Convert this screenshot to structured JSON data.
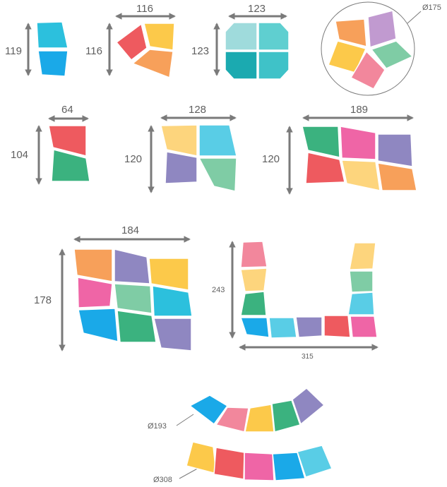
{
  "colors": {
    "cyan": "#2cc0dd",
    "blue": "#1aa9e8",
    "red": "#ee5a5f",
    "yellow": "#fcc94a",
    "orange": "#f7a05a",
    "teal_light": "#9fdbdc",
    "teal": "#5fcfd0",
    "teal_dark": "#1baab0",
    "teal_mid": "#3fc2c8",
    "pink": "#f2879c",
    "lilac": "#c19ad0",
    "mint": "#7fcca5",
    "green": "#3bb27f",
    "yellow_light": "#fdd57d",
    "sky": "#59cde6",
    "purple": "#8f87c1",
    "magenta": "#ef65a6",
    "arrow": "#7a7a7a",
    "text": "#5f5f5f"
  },
  "labels": {
    "d1": "119",
    "d2w": "116",
    "d2h": "116",
    "d3w": "123",
    "d3h": "123",
    "d4": "Ø175",
    "d5w": "64",
    "d5h": "104",
    "d6w": "128",
    "d6h": "120",
    "d7w": "189",
    "d7h": "120",
    "d8w": "184",
    "d8h": "178",
    "d9h": "243",
    "d9w": "315",
    "d10": "Ø193",
    "d11": "Ø308"
  }
}
